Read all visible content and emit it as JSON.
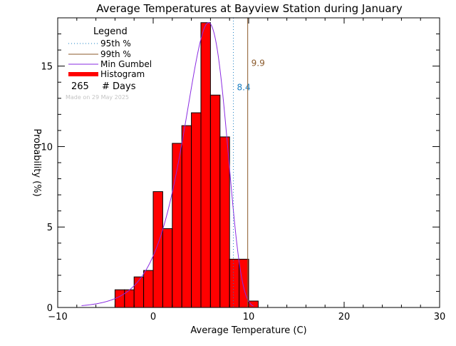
{
  "chart_data": {
    "type": "bar",
    "title": "Average Temperatures at Bayview Station during January",
    "xlabel": "Average Temperature (C)",
    "ylabel": "Probability (%)",
    "xlim": [
      -10,
      30
    ],
    "ylim": [
      0,
      18
    ],
    "x_ticks": [
      -10,
      0,
      10,
      20,
      30
    ],
    "y_ticks": [
      0,
      5,
      10,
      15
    ],
    "x_tick_labels": [
      "−10",
      "0",
      "10",
      "20",
      "30"
    ],
    "y_tick_labels": [
      "0",
      "5",
      "10",
      "15"
    ],
    "bin_width": 1,
    "bins_start": [
      -4,
      -3,
      -2,
      -1,
      0,
      1,
      2,
      3,
      4,
      5,
      6,
      7,
      8,
      9,
      10
    ],
    "values": [
      1.1,
      1.1,
      1.9,
      2.3,
      7.2,
      4.9,
      10.2,
      11.3,
      12.1,
      17.7,
      13.2,
      10.6,
      3.0,
      3.0,
      0.4
    ],
    "gumbel_curve": {
      "name": "Min Gumbel",
      "mode": 5.8,
      "scale": 2.2,
      "x_range": [
        -7.5,
        10.5
      ]
    },
    "percentiles": [
      {
        "name": "95th %",
        "value": 8.4,
        "label": "8.4",
        "color": "#1a7fc4",
        "style": "dotted"
      },
      {
        "name": "99th %",
        "value": 9.9,
        "label": "9.9",
        "color": "#8b5a2b",
        "style": "solid"
      }
    ],
    "legend": {
      "title": "Legend",
      "placement": "top-left",
      "items": [
        {
          "label": "95th %",
          "color": "#1a7fc4",
          "style": "dotted"
        },
        {
          "label": "99th %",
          "color": "#8b5a2b",
          "style": "solid"
        },
        {
          "label": "Min Gumbel",
          "color": "#8a2be2",
          "style": "solid"
        },
        {
          "label": "Histogram",
          "color": "#ff0000",
          "style": "thick"
        }
      ],
      "count_value": "265",
      "count_label": "# Days",
      "made_on": "Made on 29 May 2025"
    },
    "colors": {
      "histogram_fill": "#ff0000",
      "histogram_edge": "#000000",
      "gumbel": "#8a2be2",
      "axis": "#000000"
    },
    "grid": false
  }
}
